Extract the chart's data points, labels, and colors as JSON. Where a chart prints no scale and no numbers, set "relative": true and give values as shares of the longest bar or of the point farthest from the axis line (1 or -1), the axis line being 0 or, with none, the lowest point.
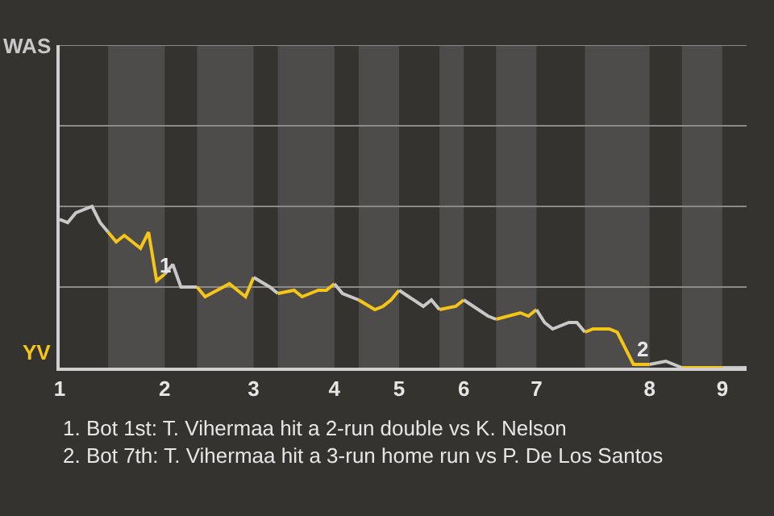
{
  "chart_data": {
    "type": "line",
    "relative": true,
    "categories": [
      "1",
      null,
      null,
      null,
      null,
      null,
      null,
      null,
      null,
      null,
      null,
      null,
      null,
      "2",
      null,
      null,
      null,
      null,
      null,
      null,
      null,
      null,
      null,
      null,
      "3",
      null,
      null,
      null,
      null,
      null,
      null,
      null,
      null,
      null,
      "4",
      null,
      null,
      null,
      null,
      null,
      null,
      null,
      "5",
      null,
      null,
      null,
      null,
      null,
      null,
      null,
      "6",
      null,
      null,
      null,
      null,
      null,
      null,
      null,
      null,
      "7",
      null,
      null,
      null,
      null,
      null,
      null,
      null,
      null,
      null,
      null,
      null,
      null,
      null,
      "8",
      null,
      null,
      null,
      null,
      null,
      null,
      null,
      null,
      "9",
      null,
      null,
      null
    ],
    "marker": "none",
    "line_style": "solid",
    "ref_lines": [
      {
        "axis": "y",
        "value": 0.5,
        "color": "#8a8a8a"
      },
      {
        "axis": "y",
        "value": 1,
        "color": "#8a8a8a"
      },
      {
        "axis": "y",
        "value": 1.5,
        "color": "#8a8a8a"
      },
      {
        "axis": "y",
        "value": 2,
        "color": "#8a8a8a"
      }
    ],
    "series": [
      {
        "color": "#c8c8c8",
        "values": [
          0.92,
          0.9,
          0.96,
          null,
          1,
          0.9,
          0.84,
          null,
          null,
          null,
          null,
          null,
          null,
          null,
          null,
          null,
          null,
          null,
          null,
          null,
          null,
          null,
          null,
          null,
          null,
          null,
          null,
          null,
          null,
          null,
          null,
          null,
          null,
          null,
          null,
          null,
          null,
          null,
          null,
          null,
          null,
          null,
          null,
          null,
          null,
          null,
          null,
          null,
          null,
          null,
          null,
          null,
          null,
          null,
          null,
          null,
          null,
          null,
          null,
          null,
          null,
          null,
          null,
          null,
          null,
          null,
          null,
          null,
          null,
          null,
          null,
          null,
          null,
          null,
          null,
          null,
          null,
          null,
          null,
          null,
          null,
          null,
          null,
          null,
          null,
          null
        ]
      },
      {
        "color": "#f5c518",
        "values": [
          null,
          null,
          null,
          null,
          null,
          null,
          0.84,
          0.78,
          0.82,
          null,
          0.74,
          0.84,
          0.54,
          0.58,
          null,
          null,
          null,
          null,
          null,
          null,
          null,
          null,
          null,
          null,
          null,
          null,
          null,
          null,
          null,
          null,
          null,
          null,
          null,
          null,
          null,
          null,
          null,
          null,
          null,
          null,
          null,
          null,
          null,
          null,
          null,
          null,
          null,
          null,
          null,
          null,
          null,
          null,
          null,
          null,
          null,
          null,
          null,
          null,
          null,
          null,
          null,
          null,
          null,
          null,
          null,
          null,
          null,
          null,
          null,
          null,
          null,
          null,
          null,
          null,
          null,
          null,
          null,
          null,
          null,
          null,
          null,
          null,
          null,
          null,
          null,
          null
        ]
      },
      {
        "color": "#c8c8c8",
        "values": [
          null,
          null,
          null,
          null,
          null,
          null,
          null,
          null,
          null,
          null,
          null,
          null,
          null,
          0.58,
          0.64,
          0.5,
          null,
          0.5,
          null,
          null,
          null,
          null,
          null,
          null,
          null,
          null,
          null,
          null,
          null,
          null,
          null,
          null,
          null,
          null,
          null,
          null,
          null,
          null,
          null,
          null,
          null,
          null,
          null,
          null,
          null,
          null,
          null,
          null,
          null,
          null,
          null,
          null,
          null,
          null,
          null,
          null,
          null,
          null,
          null,
          null,
          null,
          null,
          null,
          null,
          null,
          null,
          null,
          null,
          null,
          null,
          null,
          null,
          null,
          null,
          null,
          null,
          null,
          null,
          null,
          null,
          null,
          null,
          null,
          null,
          null,
          null
        ]
      },
      {
        "color": "#f5c518",
        "values": [
          null,
          null,
          null,
          null,
          null,
          null,
          null,
          null,
          null,
          null,
          null,
          null,
          null,
          null,
          null,
          null,
          null,
          0.5,
          0.44,
          null,
          null,
          0.52,
          null,
          0.44,
          0.56,
          null,
          null,
          null,
          null,
          null,
          null,
          null,
          null,
          null,
          null,
          null,
          null,
          null,
          null,
          null,
          null,
          null,
          null,
          null,
          null,
          null,
          null,
          null,
          null,
          null,
          null,
          null,
          null,
          null,
          null,
          null,
          null,
          null,
          null,
          null,
          null,
          null,
          null,
          null,
          null,
          null,
          null,
          null,
          null,
          null,
          null,
          null,
          null,
          null,
          null,
          null,
          null,
          null,
          null,
          null,
          null,
          null,
          null,
          null,
          null,
          null
        ]
      },
      {
        "color": "#c8c8c8",
        "values": [
          null,
          null,
          null,
          null,
          null,
          null,
          null,
          null,
          null,
          null,
          null,
          null,
          null,
          null,
          null,
          null,
          null,
          null,
          null,
          null,
          null,
          null,
          null,
          null,
          0.56,
          null,
          0.5,
          0.46,
          null,
          null,
          null,
          null,
          null,
          null,
          null,
          null,
          null,
          null,
          null,
          null,
          null,
          null,
          null,
          null,
          null,
          null,
          null,
          null,
          null,
          null,
          null,
          null,
          null,
          null,
          null,
          null,
          null,
          null,
          null,
          null,
          null,
          null,
          null,
          null,
          null,
          null,
          null,
          null,
          null,
          null,
          null,
          null,
          null,
          null,
          null,
          null,
          null,
          null,
          null,
          null,
          null,
          null,
          null,
          null,
          null,
          null
        ]
      },
      {
        "color": "#f5c518",
        "values": [
          null,
          null,
          null,
          null,
          null,
          null,
          null,
          null,
          null,
          null,
          null,
          null,
          null,
          null,
          null,
          null,
          null,
          null,
          null,
          null,
          null,
          null,
          null,
          null,
          null,
          null,
          null,
          0.46,
          null,
          0.48,
          0.44,
          null,
          0.48,
          0.48,
          0.52,
          null,
          null,
          null,
          null,
          null,
          null,
          null,
          null,
          null,
          null,
          null,
          null,
          null,
          null,
          null,
          null,
          null,
          null,
          null,
          null,
          null,
          null,
          null,
          null,
          null,
          null,
          null,
          null,
          null,
          null,
          null,
          null,
          null,
          null,
          null,
          null,
          null,
          null,
          null,
          null,
          null,
          null,
          null,
          null,
          null,
          null,
          null,
          null,
          null,
          null,
          null
        ]
      },
      {
        "color": "#c8c8c8",
        "values": [
          null,
          null,
          null,
          null,
          null,
          null,
          null,
          null,
          null,
          null,
          null,
          null,
          null,
          null,
          null,
          null,
          null,
          null,
          null,
          null,
          null,
          null,
          null,
          null,
          null,
          null,
          null,
          null,
          null,
          null,
          null,
          null,
          null,
          null,
          0.52,
          0.46,
          null,
          0.42,
          null,
          null,
          null,
          null,
          null,
          null,
          null,
          null,
          null,
          null,
          null,
          null,
          null,
          null,
          null,
          null,
          null,
          null,
          null,
          null,
          null,
          null,
          null,
          null,
          null,
          null,
          null,
          null,
          null,
          null,
          null,
          null,
          null,
          null,
          null,
          null,
          null,
          null,
          null,
          null,
          null,
          null,
          null,
          null,
          null,
          null,
          null,
          null
        ]
      },
      {
        "color": "#f5c518",
        "values": [
          null,
          null,
          null,
          null,
          null,
          null,
          null,
          null,
          null,
          null,
          null,
          null,
          null,
          null,
          null,
          null,
          null,
          null,
          null,
          null,
          null,
          null,
          null,
          null,
          null,
          null,
          null,
          null,
          null,
          null,
          null,
          null,
          null,
          null,
          null,
          null,
          null,
          0.42,
          null,
          0.36,
          0.38,
          0.42,
          0.48,
          null,
          null,
          null,
          null,
          null,
          null,
          null,
          null,
          null,
          null,
          null,
          null,
          null,
          null,
          null,
          null,
          null,
          null,
          null,
          null,
          null,
          null,
          null,
          null,
          null,
          null,
          null,
          null,
          null,
          null,
          null,
          null,
          null,
          null,
          null,
          null,
          null,
          null,
          null,
          null,
          null,
          null,
          null
        ]
      },
      {
        "color": "#c8c8c8",
        "values": [
          null,
          null,
          null,
          null,
          null,
          null,
          null,
          null,
          null,
          null,
          null,
          null,
          null,
          null,
          null,
          null,
          null,
          null,
          null,
          null,
          null,
          null,
          null,
          null,
          null,
          null,
          null,
          null,
          null,
          null,
          null,
          null,
          null,
          null,
          null,
          null,
          null,
          null,
          null,
          null,
          null,
          null,
          0.48,
          null,
          null,
          0.38,
          0.42,
          0.36,
          null,
          null,
          null,
          null,
          null,
          null,
          null,
          null,
          null,
          null,
          null,
          null,
          null,
          null,
          null,
          null,
          null,
          null,
          null,
          null,
          null,
          null,
          null,
          null,
          null,
          null,
          null,
          null,
          null,
          null,
          null,
          null,
          null,
          null,
          null,
          null,
          null,
          null
        ]
      },
      {
        "color": "#f5c518",
        "values": [
          null,
          null,
          null,
          null,
          null,
          null,
          null,
          null,
          null,
          null,
          null,
          null,
          null,
          null,
          null,
          null,
          null,
          null,
          null,
          null,
          null,
          null,
          null,
          null,
          null,
          null,
          null,
          null,
          null,
          null,
          null,
          null,
          null,
          null,
          null,
          null,
          null,
          null,
          null,
          null,
          null,
          null,
          null,
          null,
          null,
          null,
          null,
          0.36,
          null,
          0.38,
          0.42,
          null,
          null,
          null,
          null,
          null,
          null,
          null,
          null,
          null,
          null,
          null,
          null,
          null,
          null,
          null,
          null,
          null,
          null,
          null,
          null,
          null,
          null,
          null,
          null,
          null,
          null,
          null,
          null,
          null,
          null,
          null,
          null,
          null,
          null,
          null
        ]
      },
      {
        "color": "#c8c8c8",
        "values": [
          null,
          null,
          null,
          null,
          null,
          null,
          null,
          null,
          null,
          null,
          null,
          null,
          null,
          null,
          null,
          null,
          null,
          null,
          null,
          null,
          null,
          null,
          null,
          null,
          null,
          null,
          null,
          null,
          null,
          null,
          null,
          null,
          null,
          null,
          null,
          null,
          null,
          null,
          null,
          null,
          null,
          null,
          null,
          null,
          null,
          null,
          null,
          null,
          null,
          null,
          0.42,
          null,
          null,
          0.32,
          0.3,
          null,
          null,
          null,
          null,
          null,
          null,
          null,
          null,
          null,
          null,
          null,
          null,
          null,
          null,
          null,
          null,
          null,
          null,
          null,
          null,
          null,
          null,
          null,
          null,
          null,
          null,
          null,
          null,
          null,
          null,
          null
        ]
      },
      {
        "color": "#f5c518",
        "values": [
          null,
          null,
          null,
          null,
          null,
          null,
          null,
          null,
          null,
          null,
          null,
          null,
          null,
          null,
          null,
          null,
          null,
          null,
          null,
          null,
          null,
          null,
          null,
          null,
          null,
          null,
          null,
          null,
          null,
          null,
          null,
          null,
          null,
          null,
          null,
          null,
          null,
          null,
          null,
          null,
          null,
          null,
          null,
          null,
          null,
          null,
          null,
          null,
          null,
          null,
          null,
          null,
          null,
          null,
          0.3,
          null,
          null,
          0.34,
          0.32,
          0.36,
          null,
          null,
          null,
          null,
          null,
          null,
          null,
          null,
          null,
          null,
          null,
          null,
          null,
          null,
          null,
          null,
          null,
          null,
          null,
          null,
          null,
          null,
          null,
          null,
          null,
          null
        ]
      },
      {
        "color": "#c8c8c8",
        "values": [
          null,
          null,
          null,
          null,
          null,
          null,
          null,
          null,
          null,
          null,
          null,
          null,
          null,
          null,
          null,
          null,
          null,
          null,
          null,
          null,
          null,
          null,
          null,
          null,
          null,
          null,
          null,
          null,
          null,
          null,
          null,
          null,
          null,
          null,
          null,
          null,
          null,
          null,
          null,
          null,
          null,
          null,
          null,
          null,
          null,
          null,
          null,
          null,
          null,
          null,
          null,
          null,
          null,
          null,
          null,
          null,
          null,
          null,
          null,
          0.36,
          0.28,
          0.24,
          null,
          0.28,
          0.28,
          0.22,
          null,
          null,
          null,
          null,
          null,
          null,
          null,
          null,
          null,
          null,
          null,
          null,
          null,
          null,
          null,
          null,
          null,
          null,
          null,
          null
        ]
      },
      {
        "color": "#f5c518",
        "values": [
          null,
          null,
          null,
          null,
          null,
          null,
          null,
          null,
          null,
          null,
          null,
          null,
          null,
          null,
          null,
          null,
          null,
          null,
          null,
          null,
          null,
          null,
          null,
          null,
          null,
          null,
          null,
          null,
          null,
          null,
          null,
          null,
          null,
          null,
          null,
          null,
          null,
          null,
          null,
          null,
          null,
          null,
          null,
          null,
          null,
          null,
          null,
          null,
          null,
          null,
          null,
          null,
          null,
          null,
          null,
          null,
          null,
          null,
          null,
          null,
          null,
          null,
          null,
          null,
          null,
          0.22,
          0.24,
          null,
          0.24,
          0.22,
          null,
          0.02,
          null,
          0.02,
          null,
          null,
          null,
          null,
          null,
          null,
          null,
          null,
          null,
          null,
          null,
          null
        ]
      },
      {
        "color": "#c8c8c8",
        "values": [
          null,
          null,
          null,
          null,
          null,
          null,
          null,
          null,
          null,
          null,
          null,
          null,
          null,
          null,
          null,
          null,
          null,
          null,
          null,
          null,
          null,
          null,
          null,
          null,
          null,
          null,
          null,
          null,
          null,
          null,
          null,
          null,
          null,
          null,
          null,
          null,
          null,
          null,
          null,
          null,
          null,
          null,
          null,
          null,
          null,
          null,
          null,
          null,
          null,
          null,
          null,
          null,
          null,
          null,
          null,
          null,
          null,
          null,
          null,
          null,
          null,
          null,
          null,
          null,
          null,
          null,
          null,
          null,
          null,
          null,
          null,
          null,
          null,
          0.02,
          null,
          0.04,
          null,
          0,
          null,
          null,
          null,
          null,
          null,
          null,
          null,
          null
        ]
      },
      {
        "color": "#f5c518",
        "values": [
          null,
          null,
          null,
          null,
          null,
          null,
          null,
          null,
          null,
          null,
          null,
          null,
          null,
          null,
          null,
          null,
          null,
          null,
          null,
          null,
          null,
          null,
          null,
          null,
          null,
          null,
          null,
          null,
          null,
          null,
          null,
          null,
          null,
          null,
          null,
          null,
          null,
          null,
          null,
          null,
          null,
          null,
          null,
          null,
          null,
          null,
          null,
          null,
          null,
          null,
          null,
          null,
          null,
          null,
          null,
          null,
          null,
          null,
          null,
          null,
          null,
          null,
          null,
          null,
          null,
          null,
          null,
          null,
          null,
          null,
          null,
          null,
          null,
          null,
          null,
          null,
          null,
          0,
          null,
          null,
          null,
          null,
          0,
          null,
          null,
          null
        ]
      },
      {
        "color": "#c8c8c8",
        "values": [
          null,
          null,
          null,
          null,
          null,
          null,
          null,
          null,
          null,
          null,
          null,
          null,
          null,
          null,
          null,
          null,
          null,
          null,
          null,
          null,
          null,
          null,
          null,
          null,
          null,
          null,
          null,
          null,
          null,
          null,
          null,
          null,
          null,
          null,
          null,
          null,
          null,
          null,
          null,
          null,
          null,
          null,
          null,
          null,
          null,
          null,
          null,
          null,
          null,
          null,
          null,
          null,
          null,
          null,
          null,
          null,
          null,
          null,
          null,
          null,
          null,
          null,
          null,
          null,
          null,
          null,
          null,
          null,
          null,
          null,
          null,
          null,
          null,
          null,
          null,
          null,
          null,
          null,
          null,
          null,
          null,
          null,
          0,
          null,
          null,
          0
        ]
      }
    ],
    "annotations": [
      "WAS",
      "YV",
      {
        "text": "1",
        "y": 0.54
      },
      {
        "text": "2",
        "y": 0.02
      },
      "1. Bot 1st: T. Vihermaa hit a 2-run double vs K. Nelson",
      "2. Bot 7th: T. Vihermaa hit a 3-run home run vs P. De Los Santos"
    ]
  }
}
